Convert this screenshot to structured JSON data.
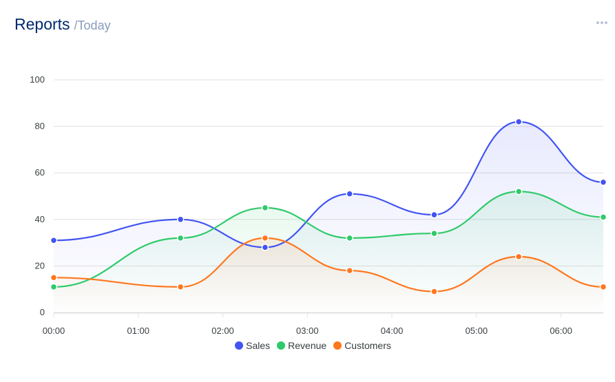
{
  "header": {
    "title": "Reports",
    "subtitle": "/Today"
  },
  "menu": {
    "icon": "more-horizontal-icon"
  },
  "chart_data": {
    "type": "area",
    "x": [
      "00:00",
      "01:30",
      "02:30",
      "03:30",
      "04:30",
      "05:30",
      "06:30"
    ],
    "x_hours": [
      0,
      1.5,
      2.5,
      3.5,
      4.5,
      5.5,
      6.5
    ],
    "x_ticks": [
      "00:00",
      "01:00",
      "02:00",
      "03:00",
      "04:00",
      "05:00",
      "06:00"
    ],
    "y_ticks": [
      "0",
      "20",
      "40",
      "60",
      "80",
      "100"
    ],
    "ylim": [
      0,
      100
    ],
    "grid": true,
    "legend": "bottom-center",
    "series": [
      {
        "name": "Sales",
        "color": "#4154f1",
        "values": [
          31,
          40,
          28,
          51,
          42,
          82,
          56
        ]
      },
      {
        "name": "Revenue",
        "color": "#2eca6a",
        "values": [
          11,
          32,
          45,
          32,
          34,
          52,
          41
        ]
      },
      {
        "name": "Customers",
        "color": "#ff771d",
        "values": [
          15,
          11,
          32,
          18,
          9,
          24,
          11
        ]
      }
    ]
  }
}
